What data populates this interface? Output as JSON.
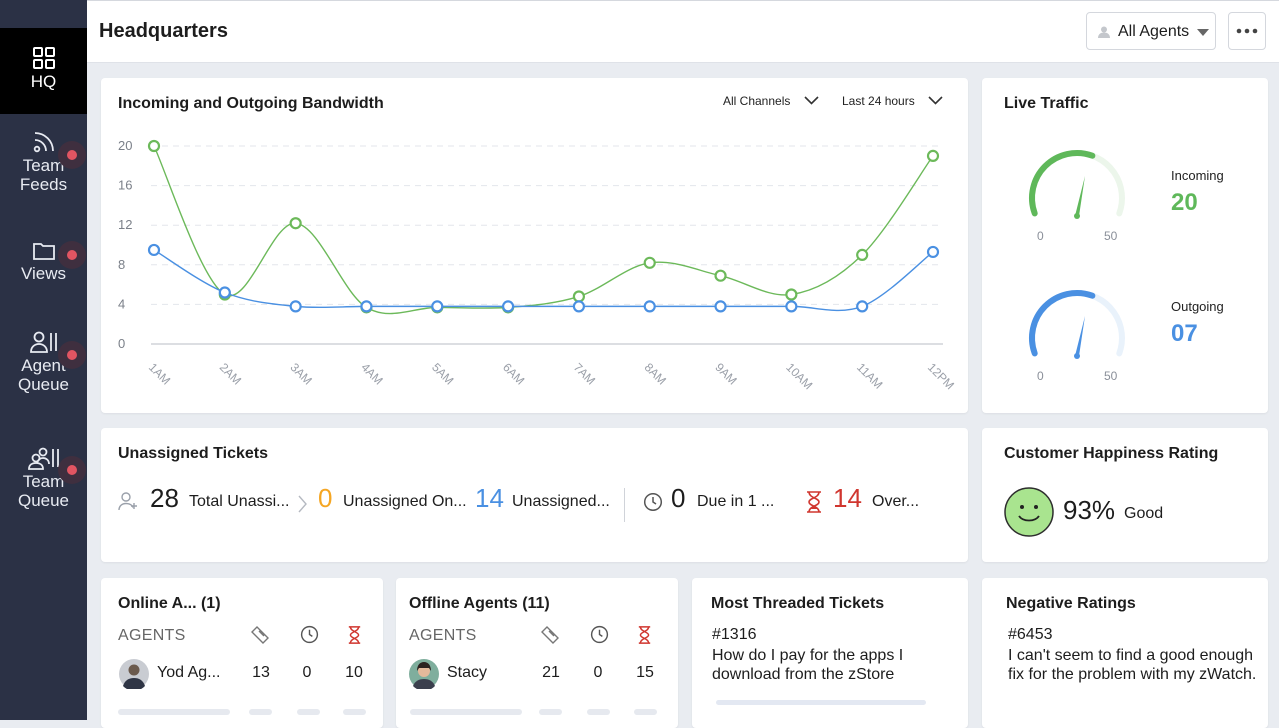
{
  "sidebar": {
    "items": [
      {
        "label": "HQ",
        "icon": "grid-icon"
      },
      {
        "label": "Team Feeds",
        "icon": "feed-icon"
      },
      {
        "label": "Views",
        "icon": "folder-icon"
      },
      {
        "label": "Agent Queue",
        "icon": "agent-queue-icon"
      },
      {
        "label": "Team Queue",
        "icon": "team-queue-icon"
      }
    ]
  },
  "header": {
    "title": "Headquarters",
    "agents_filter": "All Agents"
  },
  "bandwidth": {
    "title": "Incoming and Outgoing Bandwidth",
    "channel_filter": "All Channels",
    "time_filter": "Last 24 hours"
  },
  "chart_data": {
    "type": "line",
    "categories": [
      "1AM",
      "2AM",
      "3AM",
      "4AM",
      "5AM",
      "6AM",
      "7AM",
      "8AM",
      "9AM",
      "10AM",
      "11AM",
      "12PM"
    ],
    "y_ticks": [
      "20",
      "16",
      "12",
      "8",
      "4",
      "0"
    ],
    "ylim": [
      0,
      20
    ],
    "grid": true,
    "series": [
      {
        "color": "#6cb95a",
        "values": [
          20,
          5,
          12.2,
          3.7,
          3.7,
          3.7,
          4.8,
          8.2,
          6.9,
          5,
          9,
          19
        ]
      },
      {
        "color": "#4a90e2",
        "values": [
          9.5,
          5.2,
          3.8,
          3.8,
          3.8,
          3.8,
          3.8,
          3.8,
          3.8,
          3.8,
          3.8,
          9.3
        ]
      }
    ]
  },
  "live_traffic": {
    "title": "Live Traffic",
    "incoming": {
      "label": "Incoming",
      "value": "20",
      "min": "0",
      "max": "50",
      "level": 20,
      "color": "#5fb85a"
    },
    "outgoing": {
      "label": "Outgoing",
      "value": "07",
      "min": "0",
      "max": "50",
      "level": 7,
      "color": "#4a90e2"
    }
  },
  "unassigned": {
    "title": "Unassigned Tickets",
    "total": {
      "value": "28",
      "label": "Total Unassi..."
    },
    "online": {
      "value": "0",
      "label": "Unassigned On...",
      "color": "#f5a623"
    },
    "unassigned": {
      "value": "14",
      "label": "Unassigned...",
      "color": "#4a90e2"
    },
    "due": {
      "value": "0",
      "label": "Due in 1 ..."
    },
    "overdue": {
      "value": "14",
      "label": "Over...",
      "color": "#d0362f"
    }
  },
  "happiness": {
    "title": "Customer Happiness Rating",
    "value": "93%",
    "label": "Good"
  },
  "online_agents": {
    "title": "Online A... (1)",
    "head": "AGENTS",
    "agent": {
      "name": "Yod Ag...",
      "open": "13",
      "hold": "0",
      "overdue": "10"
    }
  },
  "offline_agents": {
    "title": "Offline Agents (11)",
    "head": "AGENTS",
    "agent": {
      "name": "Stacy",
      "open": "21",
      "hold": "0",
      "overdue": "15"
    }
  },
  "threaded": {
    "title": "Most Threaded Tickets",
    "id": "#1316",
    "text": "How do I pay for the apps I download from the zStore"
  },
  "negative": {
    "title": "Negative Ratings",
    "id": "#6453",
    "text": "I can't seem to find a good enough fix for the problem with my zWatch."
  }
}
